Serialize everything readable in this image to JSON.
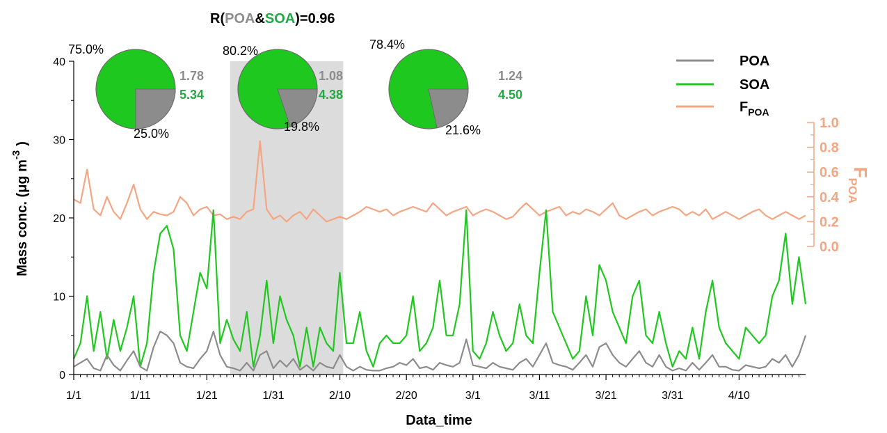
{
  "chart_data": {
    "type": "line",
    "title": "",
    "correlation": {
      "prefix": "R(",
      "poa": "POA",
      "amp": "&",
      "soa": "SOA",
      "suffix": ")=0.96"
    },
    "xlabel": "Data_time",
    "ylabel": "Mass conc. (μg m",
    "ylabel_sup": "-3",
    "ylabel_close": ")",
    "y2label": "F",
    "y2label_sub": "POA",
    "x_ticks": [
      "1/1",
      "1/11",
      "1/21",
      "1/31",
      "2/10",
      "2/20",
      "3/1",
      "3/11",
      "3/21",
      "3/31",
      "4/10"
    ],
    "x_range_days": [
      0,
      110
    ],
    "y_ticks": [
      "0",
      "10",
      "20",
      "30",
      "40"
    ],
    "ylim": [
      0,
      40
    ],
    "y2_ticks": [
      "0.0",
      "0.2",
      "0.4",
      "0.6",
      "0.8",
      "1.0"
    ],
    "y2lim": [
      0,
      1
    ],
    "highlight_days": [
      23.5,
      40.5
    ],
    "legend": {
      "poa": "POA",
      "soa": "SOA",
      "fpoa": "F",
      "fpoa_sub": "POA"
    },
    "colors": {
      "poa": "#8C8C8C",
      "soa": "#1EC81E",
      "fpoa": "#F4A582",
      "poa_text": "#8C8C8C",
      "soa_text": "#22A845",
      "highlight": "#DCDCDC"
    },
    "series": [
      {
        "name": "POA",
        "axis": "left",
        "x": [
          0,
          1,
          2,
          3,
          4,
          5,
          6,
          7,
          8,
          9,
          10,
          11,
          12,
          13,
          14,
          15,
          16,
          17,
          18,
          19,
          20,
          21,
          22,
          23,
          24,
          25,
          26,
          27,
          28,
          29,
          30,
          31,
          32,
          33,
          34,
          35,
          36,
          37,
          38,
          39,
          40,
          41,
          42,
          43,
          44,
          45,
          46,
          47,
          48,
          49,
          50,
          51,
          52,
          53,
          54,
          55,
          56,
          57,
          58,
          59,
          60,
          61,
          62,
          63,
          64,
          65,
          66,
          67,
          68,
          69,
          70,
          71,
          72,
          73,
          74,
          75,
          76,
          77,
          78,
          79,
          80,
          81,
          82,
          83,
          84,
          85,
          86,
          87,
          88,
          89,
          90,
          91,
          92,
          93,
          94,
          95,
          96,
          97,
          98,
          99,
          100,
          101,
          102,
          103,
          104,
          105,
          106,
          107,
          108,
          109,
          110
        ],
        "values": [
          1.0,
          1.5,
          2.0,
          0.8,
          0.5,
          2.5,
          1.2,
          0.5,
          1.8,
          3.0,
          1.0,
          0.5,
          3.5,
          5.5,
          5.0,
          4.0,
          1.5,
          1.0,
          0.8,
          2.0,
          3.0,
          5.5,
          2.5,
          1.0,
          0.8,
          0.5,
          1.5,
          0.5,
          2.5,
          3.0,
          0.8,
          1.8,
          1.0,
          2.0,
          0.6,
          1.2,
          0.5,
          1.5,
          1.0,
          0.8,
          2.5,
          1.0,
          0.5,
          1.0,
          0.6,
          0.5,
          0.5,
          0.8,
          1.0,
          1.5,
          1.2,
          2.0,
          0.8,
          1.0,
          0.6,
          1.5,
          1.2,
          1.0,
          1.5,
          4.5,
          1.2,
          1.0,
          0.8,
          1.5,
          1.0,
          0.8,
          0.6,
          1.5,
          2.0,
          1.0,
          2.5,
          4.0,
          1.5,
          1.2,
          1.0,
          0.6,
          1.5,
          2.5,
          1.0,
          3.5,
          4.0,
          2.5,
          1.5,
          1.0,
          2.0,
          3.0,
          1.5,
          1.0,
          2.5,
          1.0,
          0.5,
          0.8,
          0.5,
          1.5,
          0.6,
          1.5,
          2.5,
          1.0,
          1.0,
          0.6,
          0.5,
          1.2,
          1.0,
          0.8,
          1.0,
          2.0,
          1.5,
          2.5,
          1.0,
          2.5,
          5.0
        ],
        "color": "#8C8C8C"
      },
      {
        "name": "SOA",
        "axis": "left",
        "x": [
          0,
          1,
          2,
          3,
          4,
          5,
          6,
          7,
          8,
          9,
          10,
          11,
          12,
          13,
          14,
          15,
          16,
          17,
          18,
          19,
          20,
          21,
          22,
          23,
          24,
          25,
          26,
          27,
          28,
          29,
          30,
          31,
          32,
          33,
          34,
          35,
          36,
          37,
          38,
          39,
          40,
          41,
          42,
          43,
          44,
          45,
          46,
          47,
          48,
          49,
          50,
          51,
          52,
          53,
          54,
          55,
          56,
          57,
          58,
          59,
          60,
          61,
          62,
          63,
          64,
          65,
          66,
          67,
          68,
          69,
          70,
          71,
          72,
          73,
          74,
          75,
          76,
          77,
          78,
          79,
          80,
          81,
          82,
          83,
          84,
          85,
          86,
          87,
          88,
          89,
          90,
          91,
          92,
          93,
          94,
          95,
          96,
          97,
          98,
          99,
          100,
          101,
          102,
          103,
          104,
          105,
          106,
          107,
          108,
          109,
          110
        ],
        "values": [
          2.0,
          4.0,
          10.0,
          3.0,
          8.0,
          2.0,
          7.0,
          3.0,
          6.0,
          10.0,
          1.0,
          4.0,
          13.0,
          18.0,
          19.0,
          16.0,
          5.0,
          3.0,
          8.0,
          13.0,
          11.0,
          21.0,
          4.0,
          7.0,
          4.5,
          3.0,
          8.0,
          1.0,
          5.0,
          12.0,
          4.0,
          10.0,
          7.0,
          5.0,
          1.0,
          6.0,
          1.0,
          6.0,
          4.0,
          3.0,
          13.0,
          4.0,
          4.0,
          8.0,
          3.0,
          1.0,
          4.0,
          5.0,
          4.0,
          4.0,
          5.0,
          10.0,
          3.0,
          4.0,
          6.0,
          12.0,
          5.0,
          5.0,
          9.0,
          21.0,
          3.0,
          2.0,
          4.0,
          8.0,
          5.0,
          3.0,
          4.0,
          9.0,
          5.0,
          4.0,
          13.0,
          21.0,
          8.0,
          6.0,
          4.0,
          2.0,
          3.0,
          10.0,
          5.0,
          14.0,
          12.0,
          8.0,
          6.0,
          4.0,
          10.0,
          12.0,
          5.0,
          4.0,
          8.0,
          4.0,
          1.0,
          3.0,
          2.0,
          6.0,
          2.0,
          8.0,
          12.0,
          6.0,
          4.0,
          3.0,
          2.0,
          6.0,
          5.0,
          4.0,
          5.0,
          10.0,
          12.0,
          18.0,
          9.0,
          15.0,
          9.0
        ],
        "color": "#1EC81E"
      },
      {
        "name": "F",
        "axis": "right",
        "x": [
          0,
          1,
          2,
          3,
          4,
          5,
          6,
          7,
          8,
          9,
          10,
          11,
          12,
          13,
          14,
          15,
          16,
          17,
          18,
          19,
          20,
          21,
          22,
          23,
          24,
          25,
          26,
          27,
          28,
          29,
          30,
          31,
          32,
          33,
          34,
          35,
          36,
          37,
          38,
          39,
          40,
          41,
          42,
          43,
          44,
          45,
          46,
          47,
          48,
          49,
          50,
          51,
          52,
          53,
          54,
          55,
          56,
          57,
          58,
          59,
          60,
          61,
          62,
          63,
          64,
          65,
          66,
          67,
          68,
          69,
          70,
          71,
          72,
          73,
          74,
          75,
          76,
          77,
          78,
          79,
          80,
          81,
          82,
          83,
          84,
          85,
          86,
          87,
          88,
          89,
          90,
          91,
          92,
          93,
          94,
          95,
          96,
          97,
          98,
          99,
          100,
          101,
          102,
          103,
          104,
          105,
          106,
          107,
          108,
          109,
          110
        ],
        "values": [
          0.38,
          0.35,
          0.62,
          0.3,
          0.25,
          0.4,
          0.28,
          0.22,
          0.35,
          0.5,
          0.3,
          0.22,
          0.28,
          0.26,
          0.25,
          0.28,
          0.4,
          0.35,
          0.25,
          0.3,
          0.32,
          0.25,
          0.26,
          0.22,
          0.24,
          0.22,
          0.28,
          0.3,
          0.85,
          0.3,
          0.22,
          0.25,
          0.2,
          0.25,
          0.28,
          0.22,
          0.3,
          0.25,
          0.2,
          0.22,
          0.24,
          0.22,
          0.25,
          0.28,
          0.32,
          0.3,
          0.28,
          0.3,
          0.25,
          0.28,
          0.3,
          0.32,
          0.3,
          0.28,
          0.35,
          0.3,
          0.25,
          0.28,
          0.3,
          0.32,
          0.25,
          0.28,
          0.3,
          0.28,
          0.25,
          0.22,
          0.24,
          0.3,
          0.35,
          0.3,
          0.25,
          0.28,
          0.3,
          0.32,
          0.25,
          0.28,
          0.26,
          0.3,
          0.28,
          0.25,
          0.3,
          0.35,
          0.25,
          0.22,
          0.25,
          0.28,
          0.3,
          0.25,
          0.28,
          0.3,
          0.32,
          0.3,
          0.25,
          0.28,
          0.25,
          0.3,
          0.22,
          0.25,
          0.28,
          0.25,
          0.22,
          0.25,
          0.28,
          0.3,
          0.25,
          0.22,
          0.25,
          0.28,
          0.25,
          0.22,
          0.25
        ],
        "color": "#F4A582"
      }
    ],
    "pies": [
      {
        "slices": [
          {
            "name": "SOA",
            "value": 75.0,
            "label": "75.0%",
            "color": "#1EC81E"
          },
          {
            "name": "POA",
            "value": 25.0,
            "label": "25.0%",
            "color": "#8C8C8C"
          }
        ],
        "poa_mean": "1.78",
        "soa_mean": "5.34"
      },
      {
        "slices": [
          {
            "name": "SOA",
            "value": 80.2,
            "label": "80.2%",
            "color": "#1EC81E"
          },
          {
            "name": "POA",
            "value": 19.8,
            "label": "19.8%",
            "color": "#8C8C8C"
          }
        ],
        "poa_mean": "1.08",
        "soa_mean": "4.38"
      },
      {
        "slices": [
          {
            "name": "SOA",
            "value": 78.4,
            "label": "78.4%",
            "color": "#1EC81E"
          },
          {
            "name": "POA",
            "value": 21.6,
            "label": "21.6%",
            "color": "#8C8C8C"
          }
        ],
        "poa_mean": "1.24",
        "soa_mean": "4.50"
      }
    ]
  }
}
